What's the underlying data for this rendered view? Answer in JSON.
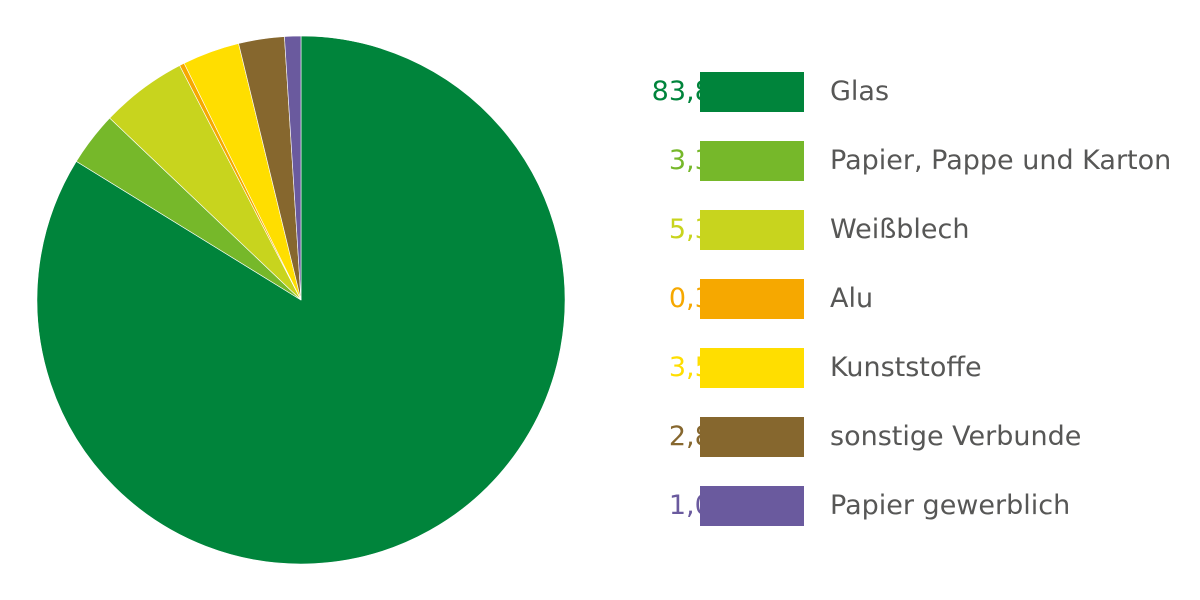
{
  "chart_data": {
    "type": "pie",
    "title": "",
    "legend_position": "right",
    "series": [
      {
        "name": "Glas",
        "value": 83.8,
        "label": "83,8 %",
        "color": "#00843b"
      },
      {
        "name": "Papier, Pappe und Karton",
        "value": 3.3,
        "label": "3,3 %",
        "color": "#76b82a"
      },
      {
        "name": "Weißblech",
        "value": 5.3,
        "label": "5,3 %",
        "color": "#c8d41e"
      },
      {
        "name": "Alu",
        "value": 0.3,
        "label": "0,3 %",
        "color": "#f6a800"
      },
      {
        "name": "Kunststoffe",
        "value": 3.5,
        "label": "3,5 %",
        "color": "#ffde00"
      },
      {
        "name": "sonstige Verbunde",
        "value": 2.8,
        "label": "2,8 %",
        "color": "#86672e"
      },
      {
        "name": "Papier gewerblich",
        "value": 1.0,
        "label": "1,0 %",
        "color": "#6a5a9e"
      }
    ]
  }
}
